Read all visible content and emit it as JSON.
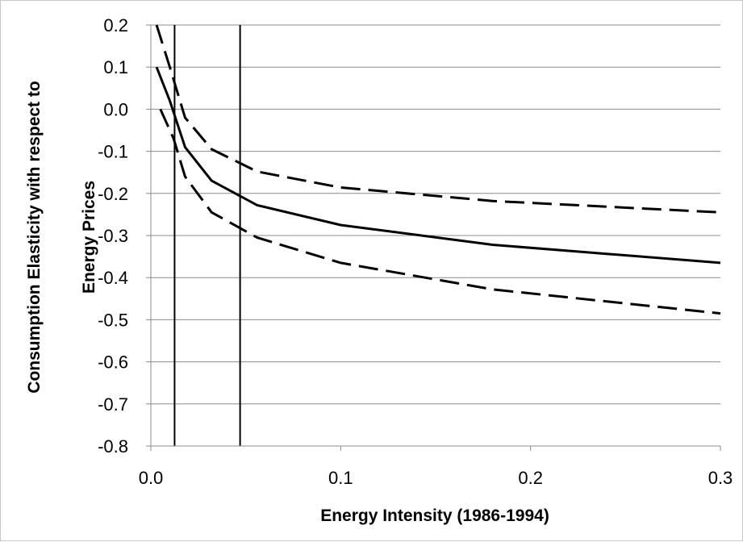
{
  "chart_data": {
    "type": "line",
    "xlabel": "Energy Intensity (1986-1994)",
    "ylabel_lines": [
      "Consumption Elasticity with respect to",
      "Energy Prices"
    ],
    "xlim": [
      0.0,
      0.3
    ],
    "ylim": [
      -0.8,
      0.2
    ],
    "x_ticks": [
      "0.0",
      "0.1",
      "0.2",
      "0.3"
    ],
    "y_ticks": [
      "0.2",
      "0.1",
      "0.0",
      "-0.1",
      "-0.2",
      "-0.3",
      "-0.4",
      "-0.5",
      "-0.6",
      "-0.7",
      "-0.8"
    ],
    "grid": "horizontal",
    "reference_lines_x": [
      0.0125,
      0.047
    ],
    "series": [
      {
        "style": "solid",
        "points": [
          [
            0.003,
            0.1
          ],
          [
            0.01,
            0.02
          ],
          [
            0.018,
            -0.09
          ],
          [
            0.032,
            -0.17
          ],
          [
            0.056,
            -0.228
          ],
          [
            0.1,
            -0.275
          ],
          [
            0.18,
            -0.322
          ],
          [
            0.3,
            -0.365
          ]
        ]
      },
      {
        "style": "dashed",
        "points": [
          [
            0.003,
            0.2
          ],
          [
            0.01,
            0.1
          ],
          [
            0.018,
            -0.02
          ],
          [
            0.032,
            -0.095
          ],
          [
            0.056,
            -0.148
          ],
          [
            0.1,
            -0.186
          ],
          [
            0.18,
            -0.218
          ],
          [
            0.3,
            -0.245
          ]
        ]
      },
      {
        "style": "dashed",
        "points": [
          [
            0.005,
            0.0
          ],
          [
            0.012,
            -0.07
          ],
          [
            0.018,
            -0.16
          ],
          [
            0.032,
            -0.245
          ],
          [
            0.056,
            -0.305
          ],
          [
            0.1,
            -0.365
          ],
          [
            0.18,
            -0.428
          ],
          [
            0.3,
            -0.485
          ]
        ]
      }
    ]
  }
}
